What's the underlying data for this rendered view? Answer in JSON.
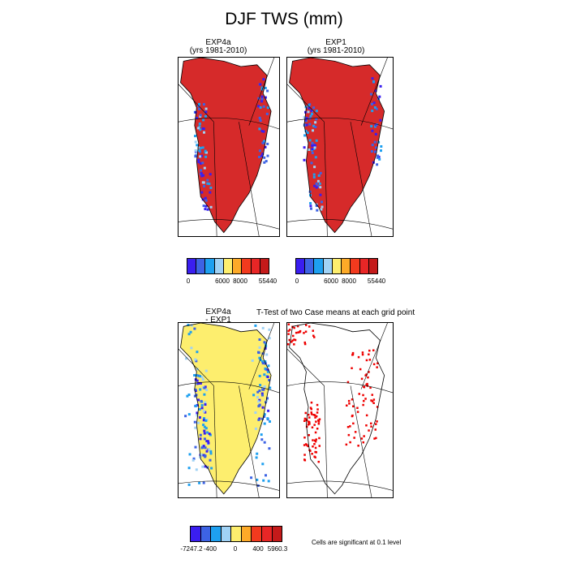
{
  "title": "DJF TWS (mm)",
  "panels": [
    {
      "label_line1": "EXP4a",
      "label_line2": "(yrs 1981-2010)",
      "fill": "full-land",
      "color": "#d62a2a"
    },
    {
      "label_line1": "EXP1",
      "label_line2": "(yrs 1981-2010)",
      "fill": "full-land",
      "color": "#d62a2a"
    },
    {
      "label_line1": "EXP4a",
      "label_line2": "- EXP1",
      "fill": "difference",
      "color": "#fdee6e"
    },
    {
      "label_line1": "",
      "label_line2": "",
      "fill": "significance",
      "color": "#ee0000"
    }
  ],
  "ttest_title": "T-Test of two Case means at each grid point",
  "significance_note": "Cells are significant at 0.1 level",
  "colorbar_top": {
    "colors": [
      "#3a1ef0",
      "#3d63e4",
      "#1ea0f0",
      "#a0d2f5",
      "#fdee6e",
      "#fdaa28",
      "#f23a1e",
      "#e82626",
      "#c41a1a"
    ],
    "labels": [
      "0",
      "6000",
      "8000",
      "55440"
    ]
  },
  "colorbar_bottom": {
    "colors": [
      "#3a1ef0",
      "#3d63e4",
      "#1ea0f0",
      "#a0d2f5",
      "#fdee6e",
      "#fdaa28",
      "#f23a1e",
      "#e82626",
      "#c41a1a"
    ],
    "labels": [
      "-7247.2",
      "-400",
      "0",
      "400",
      "5960.3"
    ]
  },
  "icons": [
    "greenland-map-icon"
  ]
}
